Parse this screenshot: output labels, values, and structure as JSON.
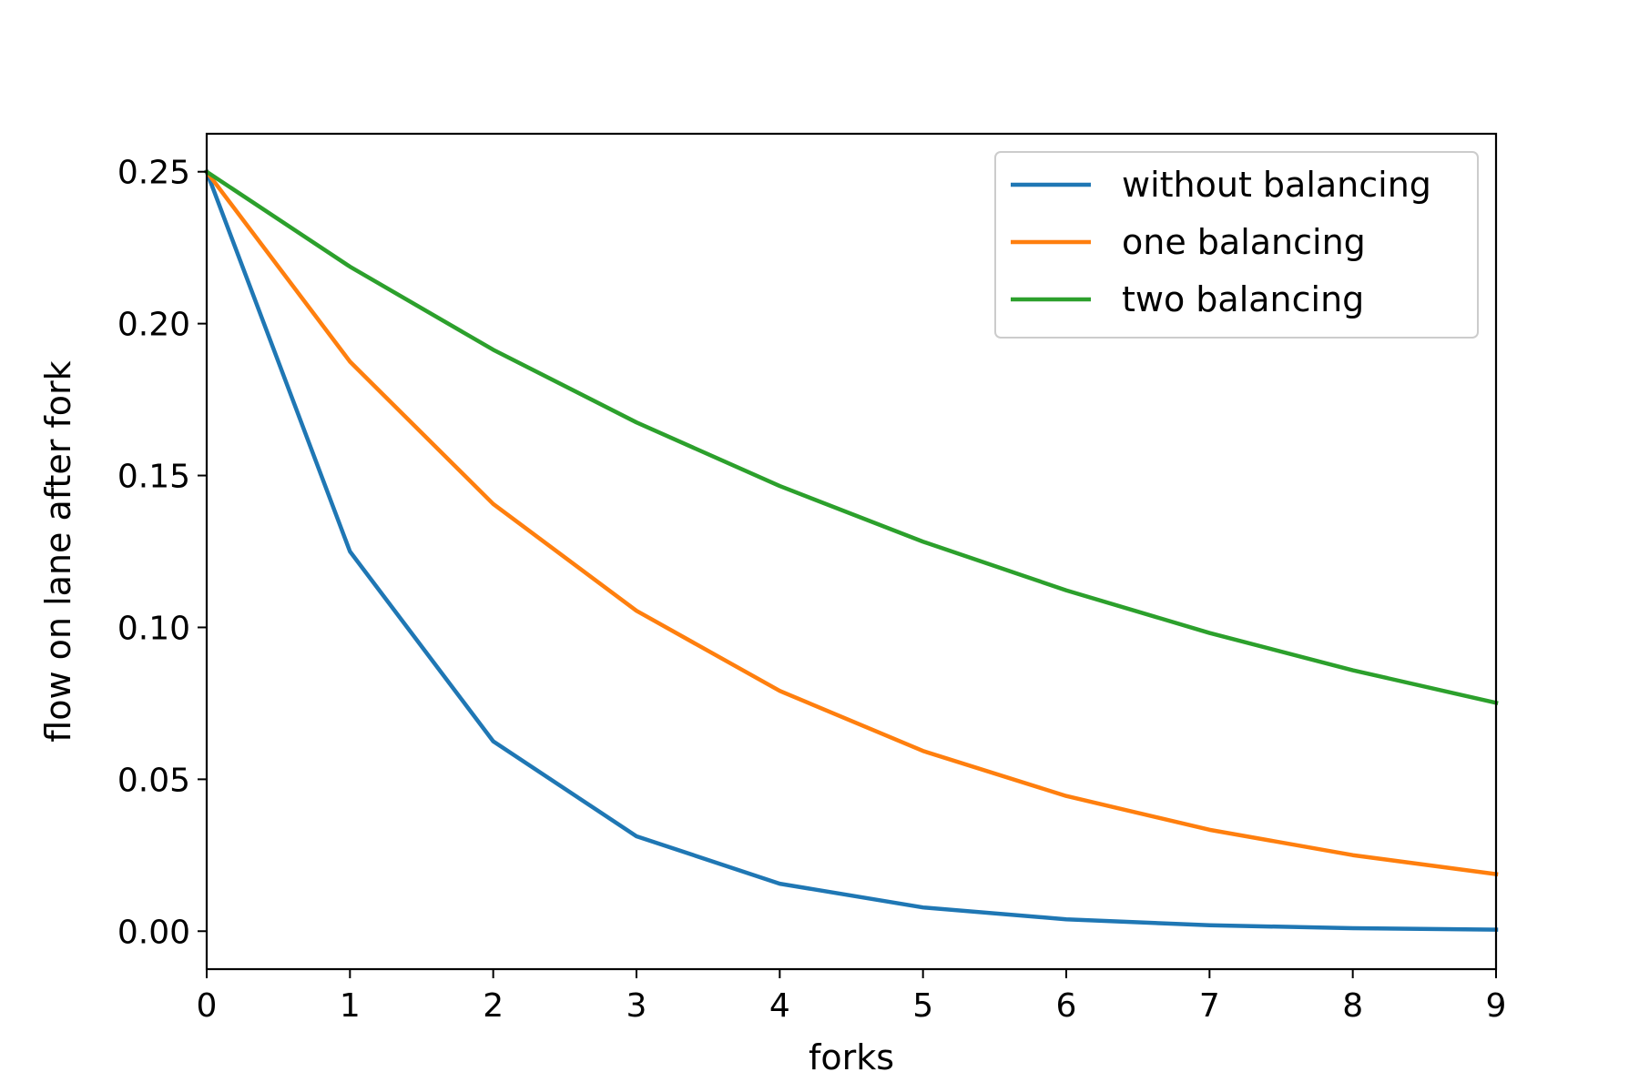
{
  "chart_data": {
    "type": "line",
    "xlabel": "forks",
    "ylabel": "flow on lane after fork",
    "xlim": [
      0,
      9
    ],
    "ylim": [
      -0.0125,
      0.2625
    ],
    "x_ticks": [
      "0",
      "1",
      "2",
      "3",
      "4",
      "5",
      "6",
      "7",
      "8",
      "9"
    ],
    "y_ticks": [
      "0.00",
      "0.05",
      "0.10",
      "0.15",
      "0.20",
      "0.25"
    ],
    "grid": false,
    "legend_position": "top-right",
    "x": [
      0,
      1,
      2,
      3,
      4,
      5,
      6,
      7,
      8,
      9
    ],
    "series": [
      {
        "name": "without balancing",
        "color": "#1f77b4",
        "values": [
          0.25,
          0.125,
          0.0625,
          0.03125,
          0.015625,
          0.0078125,
          0.00390625,
          0.001953,
          0.000977,
          0.000488
        ]
      },
      {
        "name": "one balancing",
        "color": "#ff7f0e",
        "values": [
          0.25,
          0.1875,
          0.140625,
          0.105469,
          0.079102,
          0.059326,
          0.044495,
          0.033371,
          0.025028,
          0.018771
        ]
      },
      {
        "name": "two balancing",
        "color": "#2ca02c",
        "values": [
          0.25,
          0.21875,
          0.191406,
          0.16748,
          0.146545,
          0.128227,
          0.112199,
          0.098174,
          0.085902,
          0.075164
        ]
      }
    ]
  }
}
